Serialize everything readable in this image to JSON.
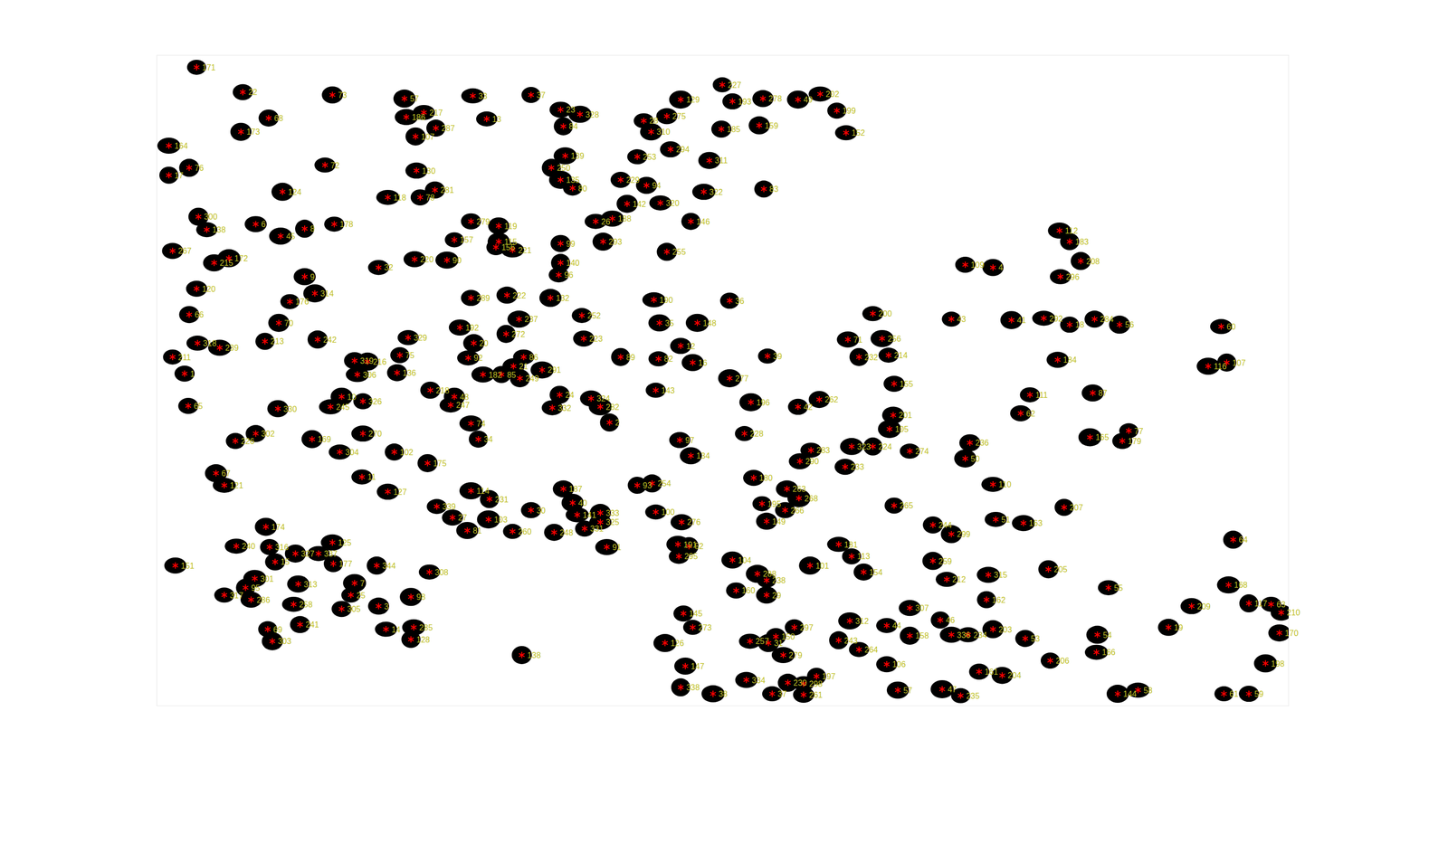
{
  "chart_data": {
    "type": "scatter",
    "marker": "asterisk",
    "color": "#ff0000",
    "tick_labels": false,
    "xlim": [
      170,
      1395
    ],
    "ylim": [
      60,
      765
    ],
    "x": [
      213,
      263,
      360,
      438,
      512,
      575,
      291,
      261,
      459,
      440,
      472,
      450,
      527,
      607,
      628,
      610,
      697,
      722,
      705,
      737,
      782,
      793,
      826,
      864,
      888,
      906,
      781,
      822,
      916,
      183,
      183,
      205,
      352,
      451,
      612,
      597,
      690,
      726,
      768,
      607,
      620,
      672,
      700,
      306,
      420,
      455,
      471,
      679,
      715,
      762,
      827,
      215,
      224,
      277,
      304,
      330,
      362,
      187,
      232,
      248,
      492,
      510,
      540,
      540,
      555,
      537,
      607,
      653,
      645,
      663,
      748,
      722,
      410,
      449,
      484,
      607,
      605,
      213,
      330,
      341,
      314,
      510,
      549,
      596,
      708,
      790,
      205,
      302,
      214,
      238,
      287,
      344,
      442,
      498,
      562,
      548,
      630,
      632,
      714,
      755,
      187,
      200,
      384,
      398,
      387,
      433,
      430,
      513,
      507,
      523,
      543,
      563,
      567,
      556,
      587,
      672,
      713,
      737,
      750,
      790,
      831,
      204,
      301,
      370,
      358,
      393,
      466,
      492,
      488,
      510,
      518,
      606,
      598,
      640,
      650,
      660,
      710,
      736,
      748,
      813,
      806,
      864,
      887,
      234,
      243,
      255,
      277,
      338,
      368,
      393,
      427,
      463,
      392,
      420,
      510,
      530,
      473,
      490,
      506,
      529,
      555,
      575,
      610,
      620,
      625,
      633,
      600,
      650,
      650,
      657,
      690,
      706,
      710,
      738,
      734,
      746,
      735,
      816,
      852,
      865,
      825,
      850,
      830,
      288,
      256,
      292,
      298,
      320,
      345,
      360,
      361,
      408,
      465,
      190,
      276,
      266,
      243,
      272,
      323,
      384,
      380,
      370,
      410,
      445,
      318,
      290,
      325,
      295,
      418,
      448,
      445,
      565,
      945,
      918,
      955,
      930,
      962,
      968,
      967,
      963,
      1030,
      1045,
      1075,
      1095,
      1130,
      1158,
      1185,
      1212,
      1322,
      1147,
      1158,
      1170,
      1148,
      1145,
      1308,
      1328,
      1115,
      1105,
      1183,
      1180,
      1222,
      1215,
      1050,
      1045,
      1075,
      968,
      1010,
      1030,
      1078,
      1108,
      1152,
      1335,
      878,
      866,
      922,
      945,
      985,
      915,
      793,
      820,
      830,
      797,
      830,
      877,
      908,
      922,
      935,
      1010,
      1025,
      1070,
      1068,
      1135,
      1200,
      1290,
      1330,
      1352,
      1376,
      1387,
      1385,
      1370,
      1325,
      1352,
      1265,
      1188,
      1187,
      1137,
      1110,
      1075,
      1048,
      1030,
      1018,
      985,
      960,
      985,
      920,
      908,
      930,
      960,
      972,
      1020,
      1040,
      1060,
      1085,
      1210,
      1232,
      860,
      840,
      832,
      812,
      848,
      884,
      853,
      870,
      808,
      772,
      737,
      836,
      870,
      742,
      720,
      750,
      740
    ],
    "y": [
      73,
      100,
      103,
      107,
      104,
      103,
      128,
      143,
      122,
      127,
      139,
      148,
      129,
      119,
      124,
      137,
      131,
      126,
      143,
      108,
      92,
      110,
      107,
      108,
      102,
      120,
      140,
      136,
      144,
      158,
      190,
      182,
      179,
      185,
      169,
      182,
      170,
      162,
      174,
      195,
      204,
      195,
      201,
      208,
      214,
      214,
      206,
      221,
      220,
      208,
      205,
      235,
      249,
      243,
      256,
      248,
      243,
      272,
      285,
      280,
      260,
      240,
      245,
      262,
      271,
      268,
      264,
      262,
      240,
      237,
      240,
      273,
      290,
      281,
      282,
      285,
      298,
      313,
      300,
      318,
      327,
      323,
      320,
      323,
      325,
      326,
      341,
      350,
      372,
      377,
      370,
      368,
      366,
      355,
      346,
      362,
      342,
      367,
      350,
      350,
      387,
      405,
      391,
      392,
      406,
      385,
      404,
      372,
      388,
      406,
      406,
      410,
      387,
      397,
      401,
      387,
      389,
      375,
      393,
      410,
      386,
      440,
      443,
      430,
      441,
      435,
      423,
      430,
      439,
      459,
      476,
      428,
      442,
      432,
      441,
      458,
      423,
      477,
      494,
      436,
      470,
      441,
      433,
      513,
      526,
      478,
      470,
      476,
      490,
      470,
      490,
      502,
      517,
      533,
      532,
      541,
      549,
      561,
      575,
      563,
      576,
      553,
      530,
      545,
      558,
      573,
      577,
      556,
      566,
      593,
      526,
      524,
      555,
      566,
      590,
      592,
      603,
      518,
      530,
      540,
      546,
      553,
      565,
      571,
      592,
      593,
      609,
      600,
      600,
      588,
      611,
      613,
      620,
      613,
      627,
      637,
      645,
      650,
      633,
      632,
      645,
      660,
      657,
      647,
      655,
      682,
      677,
      695,
      682,
      680,
      693,
      710,
      340,
      368,
      367,
      387,
      385,
      416,
      450,
      465,
      346,
      287,
      290,
      347,
      345,
      352,
      346,
      352,
      354,
      250,
      262,
      283,
      300,
      390,
      397,
      393,
      428,
      448,
      426,
      474,
      467,
      478,
      480,
      497,
      525,
      548,
      569,
      579,
      563,
      567,
      550,
      585,
      488,
      500,
      484,
      484,
      489,
      506,
      607,
      622,
      629,
      640,
      645,
      613,
      590,
      603,
      620,
      608,
      628,
      623,
      650,
      617,
      637,
      657,
      634,
      654,
      655,
      664,
      686,
      719,
      752,
      752,
      680,
      688,
      707,
      716,
      692,
      682,
      688,
      688,
      672,
      689,
      678,
      659,
      673,
      694,
      704,
      720,
      748,
      747,
      754,
      728,
      732,
      752,
      748,
      680,
      690,
      697,
      695,
      710,
      733,
      740,
      741,
      737,
      752,
      745,
      752,
      753,
      722,
      697,
      680,
      665
    ],
    "labels": [
      "171",
      "22",
      "73",
      "57",
      "33",
      "37",
      "68",
      "173",
      "217",
      "186",
      "287",
      "107",
      "13",
      "23",
      "328",
      "84",
      "28",
      "275",
      "310",
      "129",
      "227",
      "193",
      "278",
      "49",
      "202",
      "199",
      "185",
      "159",
      "152",
      "164",
      "17",
      "76",
      "72",
      "130",
      "139",
      "250",
      "253",
      "294",
      "311",
      "135",
      "80",
      "229",
      "94",
      "124",
      "118",
      "78",
      "281",
      "142",
      "320",
      "322",
      "83",
      "300",
      "138",
      "6",
      "45",
      "8",
      "178",
      "267",
      "215",
      "172",
      "157",
      "279",
      "119",
      "115",
      "221",
      "156",
      "99",
      "293",
      "26",
      "188",
      "146",
      "255",
      "32",
      "220",
      "90",
      "140",
      "96",
      "120",
      "9",
      "314",
      "176",
      "289",
      "222",
      "132",
      "190",
      "36",
      "66",
      "70",
      "318",
      "239",
      "213",
      "242",
      "329",
      "192",
      "237",
      "272",
      "252",
      "223",
      "35",
      "148",
      "211",
      "1",
      "319",
      "216",
      "306",
      "75",
      "136",
      "20",
      "92",
      "182",
      "85",
      "249",
      "86",
      "21",
      "291",
      "89",
      "82",
      "12",
      "16",
      "277",
      "39",
      "65",
      "330",
      "10",
      "245",
      "326",
      "218",
      "48",
      "247",
      "74",
      "34",
      "24",
      "332",
      "324",
      "282",
      "2",
      "143",
      "97",
      "134",
      "196",
      "228",
      "42",
      "262",
      "67",
      "121",
      "226",
      "302",
      "169",
      "304",
      "270",
      "102",
      "175",
      "11",
      "127",
      "114",
      "231",
      "339",
      "27",
      "81",
      "103",
      "260",
      "30",
      "187",
      "40",
      "141",
      "331",
      "248",
      "333",
      "325",
      "91",
      "93",
      "254",
      "100",
      "276",
      "191",
      "52",
      "295",
      "180",
      "263",
      "268",
      "195",
      "266",
      "149",
      "174",
      "240",
      "316",
      "15",
      "327",
      "337",
      "125",
      "177",
      "344",
      "308",
      "151",
      "301",
      "95",
      "317",
      "286",
      "313",
      "7",
      "25",
      "305",
      "3",
      "98",
      "258",
      "69",
      "241",
      "303",
      "14",
      "285",
      "128",
      "138",
      "200",
      "71",
      "256",
      "232",
      "214",
      "155",
      "201",
      "105",
      "43",
      "109",
      "4",
      "41",
      "292",
      "18",
      "284",
      "56",
      "60",
      "112",
      "183",
      "208",
      "296",
      "184",
      "116",
      "107",
      "111",
      "62",
      "87",
      "165",
      "77",
      "179",
      "236",
      "50",
      "110",
      "265",
      "244",
      "299",
      "51",
      "163",
      "207",
      "64",
      "283",
      "290",
      "323",
      "224",
      "274",
      "233",
      "104",
      "288",
      "238",
      "160",
      "29",
      "101",
      "181",
      "113",
      "154",
      "259",
      "212",
      "315",
      "162",
      "205",
      "55",
      "209",
      "168",
      "117",
      "63",
      "210",
      "170",
      "198",
      "61",
      "59",
      "19",
      "54",
      "166",
      "206",
      "53",
      "203",
      "234",
      "336",
      "46",
      "158",
      "44",
      "307",
      "312",
      "243",
      "264",
      "106",
      "57",
      "47",
      "235",
      "161",
      "204",
      "144",
      "58",
      "297",
      "150",
      "31",
      "257",
      "279",
      "197",
      "230",
      "298",
      "334",
      "38",
      "338",
      "37",
      "261",
      "147",
      "126",
      "273",
      "145"
    ]
  }
}
